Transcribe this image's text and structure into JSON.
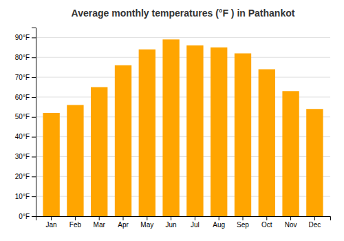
{
  "chart_data": {
    "type": "bar",
    "title": "Average monthly temperatures (°F ) in Pathankot",
    "categories": [
      "Jan",
      "Feb",
      "Mar",
      "Apr",
      "May",
      "Jun",
      "Jul",
      "Aug",
      "Sep",
      "Oct",
      "Nov",
      "Dec"
    ],
    "values": [
      52,
      56,
      65,
      76,
      84,
      89,
      86,
      85,
      82,
      74,
      63,
      54
    ],
    "color": "#FFA500",
    "ylim": [
      0,
      95
    ],
    "yticks": [
      {
        "value": 0,
        "label": "0°F"
      },
      {
        "value": 10,
        "label": "10°F"
      },
      {
        "value": 20,
        "label": "20°F"
      },
      {
        "value": 30,
        "label": "30°F"
      },
      {
        "value": 40,
        "label": "40°F"
      },
      {
        "value": 50,
        "label": "50°F"
      },
      {
        "value": 60,
        "label": "60°F"
      },
      {
        "value": 70,
        "label": "70°F"
      },
      {
        "value": 80,
        "label": "80°F"
      },
      {
        "value": 90,
        "label": "90°F"
      }
    ],
    "grid": true
  }
}
